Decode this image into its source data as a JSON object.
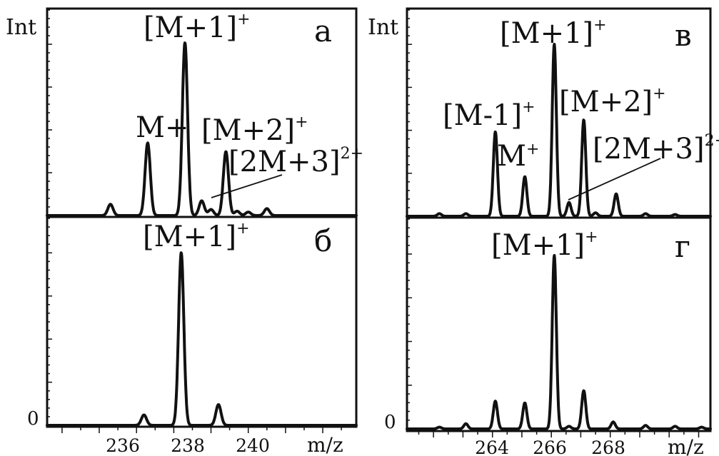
{
  "chart_data": [
    {
      "panel": "а",
      "type": "line",
      "ylabel": "Int",
      "xlim": [
        234.6,
        242.9
      ],
      "ylim": [
        0,
        100
      ],
      "peaks": [
        {
          "x": 236.3,
          "y": 6.5
        },
        {
          "x": 237.3,
          "y": 42
        },
        {
          "x": 238.3,
          "y": 100
        },
        {
          "x": 238.75,
          "y": 8.5
        },
        {
          "x": 239.0,
          "y": 3.5
        },
        {
          "x": 239.4,
          "y": 37
        },
        {
          "x": 239.7,
          "y": 2.5
        },
        {
          "x": 240.0,
          "y": 2
        },
        {
          "x": 240.5,
          "y": 4
        }
      ],
      "annotations": [
        {
          "text": "M+",
          "sup": "",
          "x": 237.3
        },
        {
          "text": "[M+1]",
          "sup": "+",
          "x": 238.3
        },
        {
          "text": "[M+2]",
          "sup": "+",
          "x": 239.4
        },
        {
          "text": "[2M+3]",
          "sup": "2+",
          "x": 238.75
        }
      ]
    },
    {
      "panel": "б",
      "type": "line",
      "yzero": "0",
      "xlabel": "m/z",
      "xlim": [
        234.6,
        242.9
      ],
      "xticks": [
        236,
        238,
        240
      ],
      "ylim": [
        0,
        100
      ],
      "peaks": [
        {
          "x": 237.2,
          "y": 6
        },
        {
          "x": 238.2,
          "y": 100
        },
        {
          "x": 239.2,
          "y": 12
        }
      ],
      "annotations": [
        {
          "text": "[M+1]",
          "sup": "+",
          "x": 238.2
        }
      ]
    },
    {
      "panel": "в",
      "type": "line",
      "ylabel": "Int",
      "xlim": [
        261.1,
        271.4
      ],
      "ylim": [
        0,
        100
      ],
      "peaks": [
        {
          "x": 262.2,
          "y": 1.5
        },
        {
          "x": 263.1,
          "y": 1.5
        },
        {
          "x": 264.1,
          "y": 49
        },
        {
          "x": 265.1,
          "y": 23
        },
        {
          "x": 266.1,
          "y": 100
        },
        {
          "x": 266.6,
          "y": 8
        },
        {
          "x": 267.1,
          "y": 56
        },
        {
          "x": 267.5,
          "y": 2
        },
        {
          "x": 268.2,
          "y": 13
        },
        {
          "x": 269.2,
          "y": 1.5
        },
        {
          "x": 270.2,
          "y": 1
        }
      ],
      "annotations": [
        {
          "text": "[M-1]",
          "sup": "+",
          "x": 264.1
        },
        {
          "text": "M",
          "sup": "+",
          "x": 265.1
        },
        {
          "text": "[M+1]",
          "sup": "+",
          "x": 266.1
        },
        {
          "text": "[M+2]",
          "sup": "+",
          "x": 267.1
        },
        {
          "text": "[2M+3]",
          "sup": "2+",
          "x": 266.6
        }
      ]
    },
    {
      "panel": "г",
      "type": "line",
      "yzero": "0",
      "xlabel": "m/z",
      "xlim": [
        261.1,
        271.4
      ],
      "xticks": [
        264,
        266,
        268
      ],
      "ylim": [
        0,
        100
      ],
      "peaks": [
        {
          "x": 262.2,
          "y": 1
        },
        {
          "x": 263.1,
          "y": 3
        },
        {
          "x": 264.1,
          "y": 16
        },
        {
          "x": 265.1,
          "y": 15
        },
        {
          "x": 266.1,
          "y": 100
        },
        {
          "x": 266.6,
          "y": 1.5
        },
        {
          "x": 267.1,
          "y": 22
        },
        {
          "x": 268.1,
          "y": 4
        },
        {
          "x": 269.2,
          "y": 2
        },
        {
          "x": 270.2,
          "y": 1.5
        },
        {
          "x": 271.1,
          "y": 1
        }
      ],
      "annotations": [
        {
          "text": "[M+1]",
          "sup": "+",
          "x": 266.1
        }
      ]
    }
  ]
}
